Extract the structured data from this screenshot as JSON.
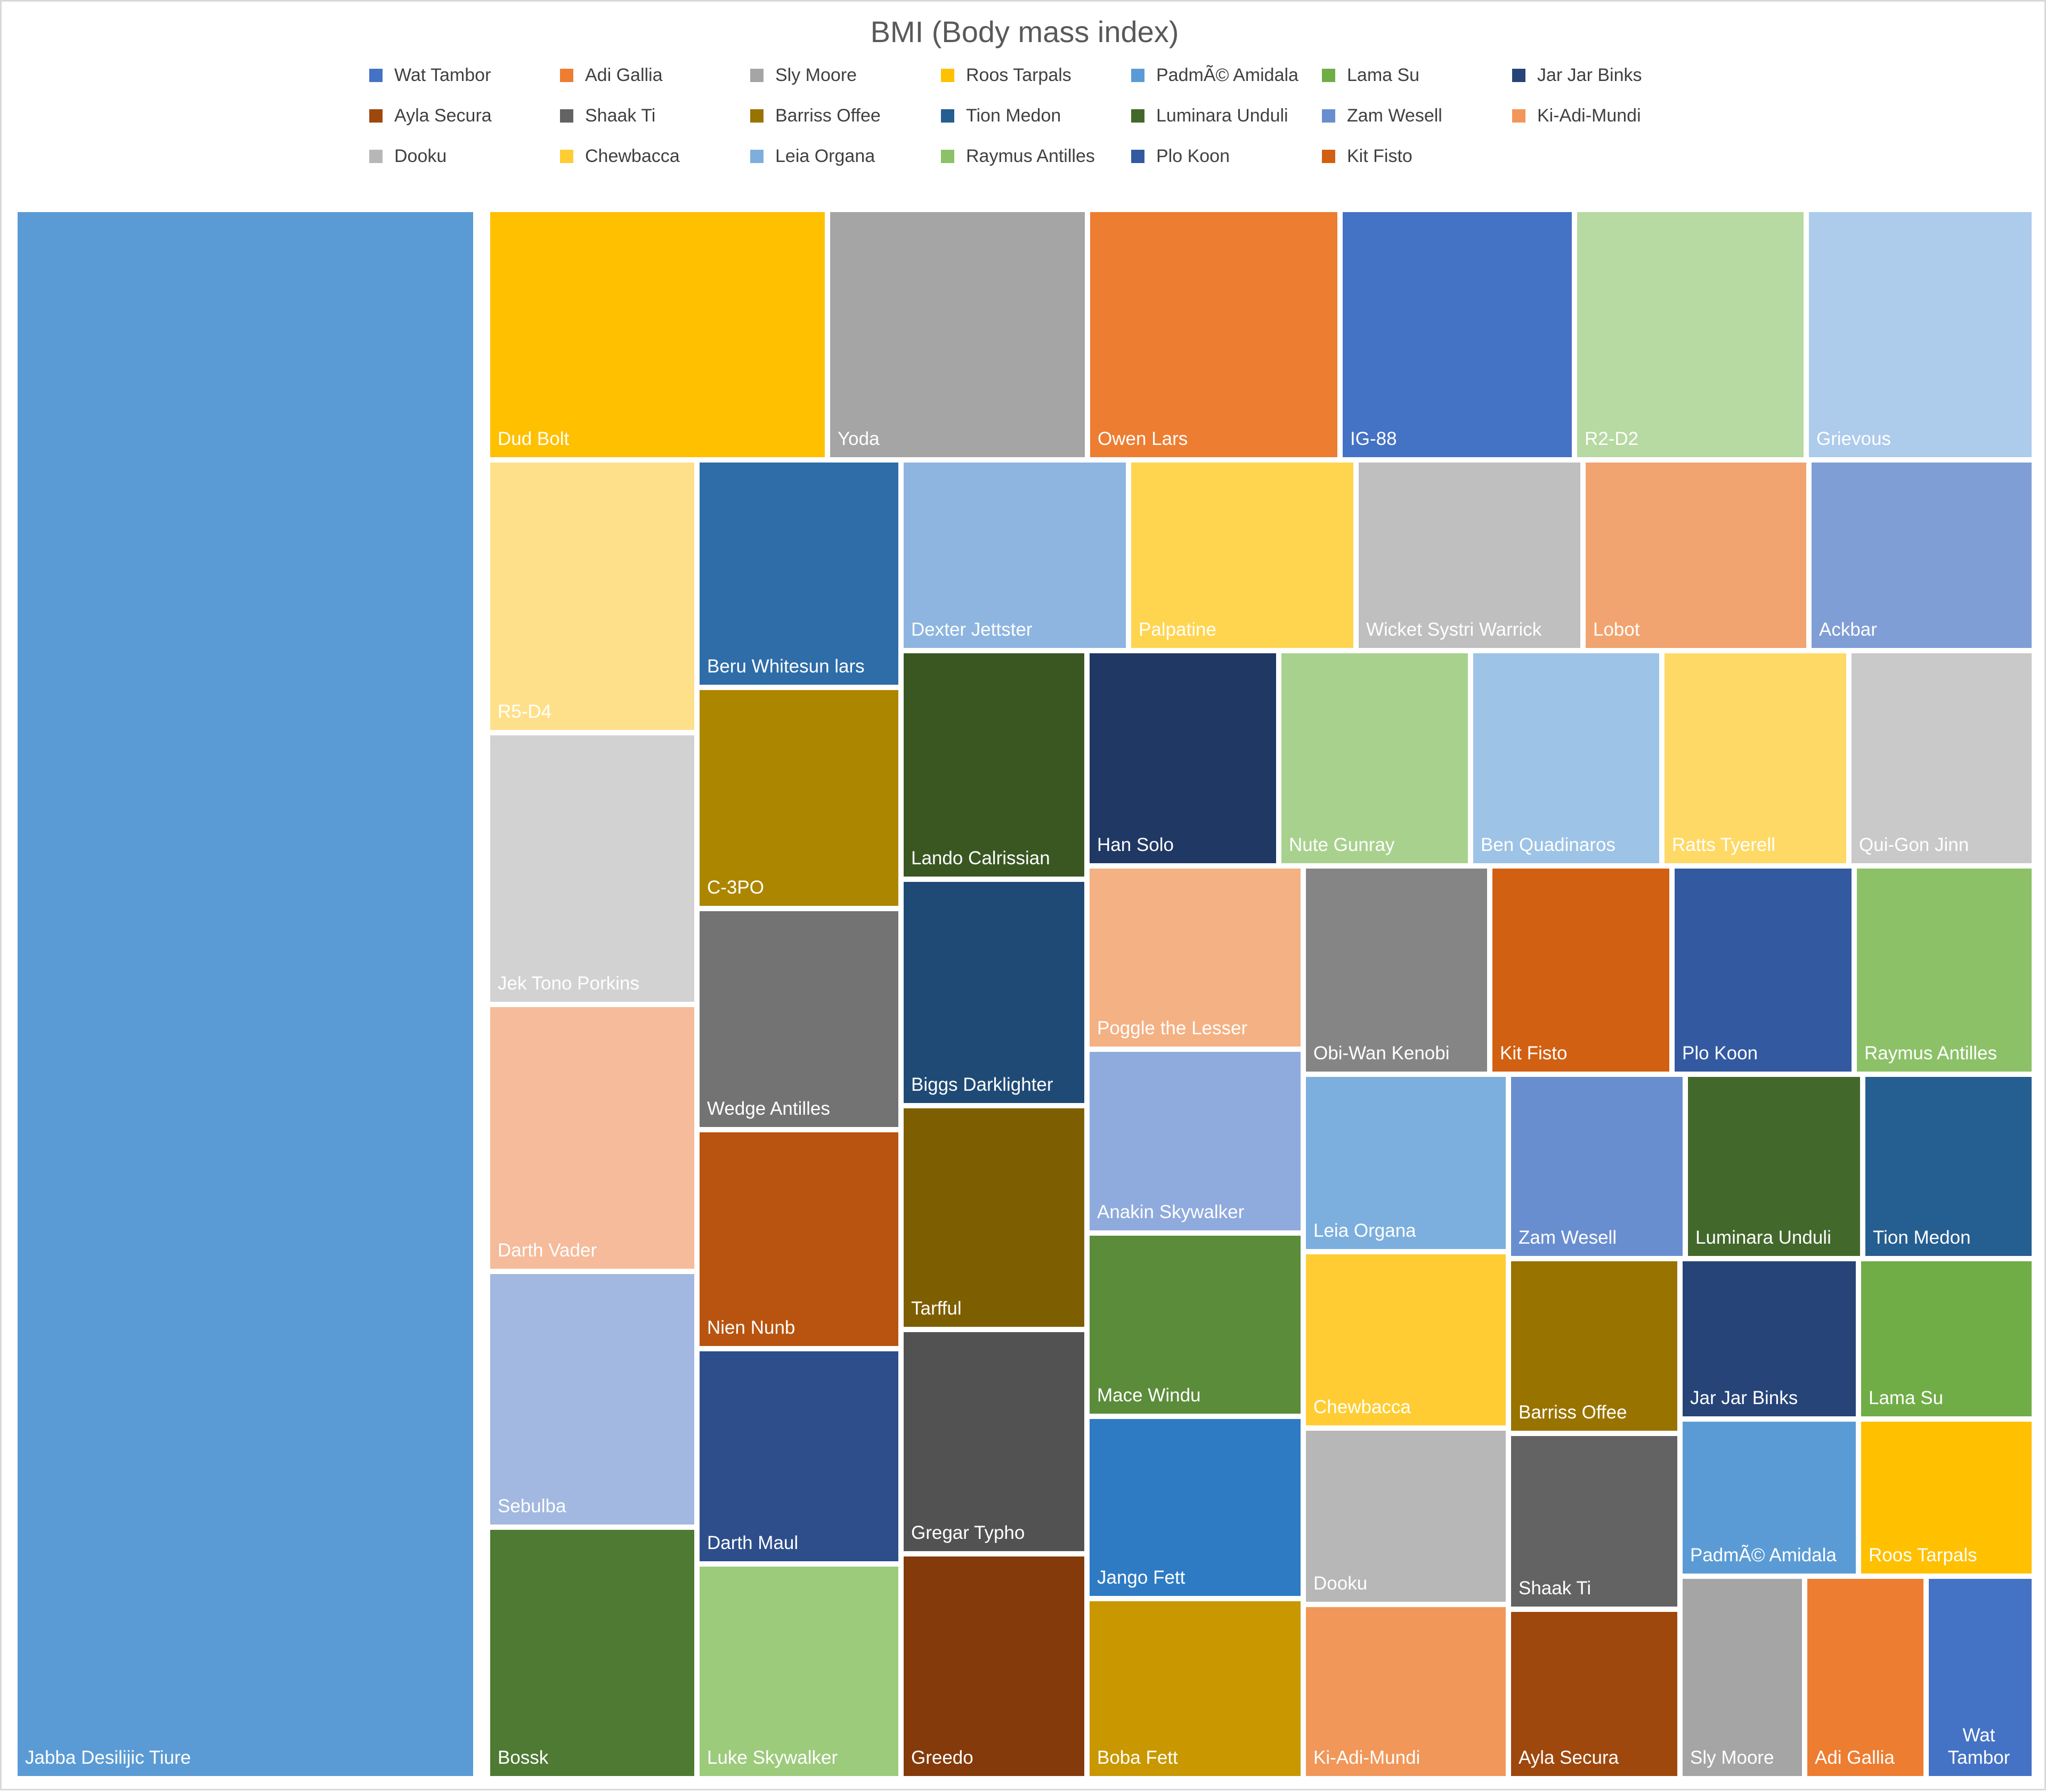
{
  "chart_data": {
    "type": "treemap",
    "title": "BMI (Body mass index)",
    "legend_position": "top",
    "legend": [
      {
        "name": "Wat Tambor",
        "color": "#4472C4"
      },
      {
        "name": "Adi Gallia",
        "color": "#ED7D31"
      },
      {
        "name": "Sly Moore",
        "color": "#A5A5A5"
      },
      {
        "name": "Roos Tarpals",
        "color": "#FFC000"
      },
      {
        "name": "PadmÃ© Amidala",
        "color": "#5B9BD5"
      },
      {
        "name": "Lama Su",
        "color": "#70AD47"
      },
      {
        "name": "Jar Jar Binks",
        "color": "#264478"
      },
      {
        "name": "Ayla Secura",
        "color": "#9E480E"
      },
      {
        "name": "Shaak Ti",
        "color": "#636363"
      },
      {
        "name": "Barriss Offee",
        "color": "#997300"
      },
      {
        "name": "Tion Medon",
        "color": "#255E91"
      },
      {
        "name": "Luminara Unduli",
        "color": "#43682B"
      },
      {
        "name": "Zam Wesell",
        "color": "#698ED0"
      },
      {
        "name": "Ki-Adi-Mundi",
        "color": "#F1975A"
      },
      {
        "name": "Dooku",
        "color": "#B7B7B7"
      },
      {
        "name": "Chewbacca",
        "color": "#FFCD33"
      },
      {
        "name": "Leia Organa",
        "color": "#7CAFDD"
      },
      {
        "name": "Raymus Antilles",
        "color": "#8CC168"
      },
      {
        "name": "Plo Koon",
        "color": "#335AA1"
      },
      {
        "name": "Kit Fisto",
        "color": "#D26012"
      }
    ],
    "items": [
      {
        "name": "Jabba Desilijic Tiure",
        "value": 443.4,
        "color": "#5B9BD5"
      },
      {
        "name": "Dud Bolt",
        "value": 50.9,
        "color": "#FFC000"
      },
      {
        "name": "Yoda",
        "value": 39.0,
        "color": "#A5A5A5"
      },
      {
        "name": "Owen Lars",
        "value": 37.9,
        "color": "#ED7D31"
      },
      {
        "name": "IG-88",
        "value": 35.0,
        "color": "#4472C4"
      },
      {
        "name": "R2-D2",
        "value": 34.7,
        "color": "#B7D9A2"
      },
      {
        "name": "Grievous",
        "value": 34.1,
        "color": "#ADCBEB"
      },
      {
        "name": "R5-D4",
        "value": 34.0,
        "color": "#FFE08A"
      },
      {
        "name": "Jek Tono Porkins",
        "value": 33.9,
        "color": "#D2D2D2"
      },
      {
        "name": "Darth Vader",
        "value": 33.3,
        "color": "#F5BB9A"
      },
      {
        "name": "Sebulba",
        "value": 31.9,
        "color": "#A2B8E0"
      },
      {
        "name": "Bossk",
        "value": 31.3,
        "color": "#4E7A33"
      },
      {
        "name": "Beru Whitesun lars",
        "value": 27.5,
        "color": "#2E6DA8"
      },
      {
        "name": "C-3PO",
        "value": 26.9,
        "color": "#AD8600"
      },
      {
        "name": "Wedge Antilles",
        "value": 26.6,
        "color": "#737373"
      },
      {
        "name": "Nien Nunb",
        "value": 26.6,
        "color": "#B85410"
      },
      {
        "name": "Darth Maul",
        "value": 26.1,
        "color": "#2D4E8A"
      },
      {
        "name": "Luke Skywalker",
        "value": 26.0,
        "color": "#9CCB7C"
      },
      {
        "name": "Dexter Jettster",
        "value": 26.0,
        "color": "#8DB5E0"
      },
      {
        "name": "Palpatine",
        "value": 25.9,
        "color": "#FFD550"
      },
      {
        "name": "Wicket Systri Warrick",
        "value": 25.8,
        "color": "#BFBFBF"
      },
      {
        "name": "Lobot",
        "value": 25.8,
        "color": "#F1A46F"
      },
      {
        "name": "Ackbar",
        "value": 25.6,
        "color": "#7F9ED5"
      },
      {
        "name": "Lando Calrissian",
        "value": 25.2,
        "color": "#3A5722"
      },
      {
        "name": "Biggs Darklighter",
        "value": 25.1,
        "color": "#1F4A75"
      },
      {
        "name": "Tarfful",
        "value": 24.8,
        "color": "#7D5E00"
      },
      {
        "name": "Gregar Typho",
        "value": 24.8,
        "color": "#525252"
      },
      {
        "name": "Greedo",
        "value": 24.7,
        "color": "#843A0B"
      },
      {
        "name": "Han Solo",
        "value": 24.7,
        "color": "#203864"
      },
      {
        "name": "Nute Gunray",
        "value": 24.7,
        "color": "#A9D18E"
      },
      {
        "name": "Ben Quadinaros",
        "value": 24.5,
        "color": "#9DC3E6"
      },
      {
        "name": "Ratts Tyerell",
        "value": 24.3,
        "color": "#FFD966"
      },
      {
        "name": "Qui-Gon Jinn",
        "value": 23.9,
        "color": "#C9C9C9"
      },
      {
        "name": "Poggle the Lesser",
        "value": 23.8,
        "color": "#F4B183"
      },
      {
        "name": "Anakin Skywalker",
        "value": 23.8,
        "color": "#8FAADC"
      },
      {
        "name": "Mace Windu",
        "value": 23.8,
        "color": "#5B8C3A"
      },
      {
        "name": "Jango Fett",
        "value": 23.6,
        "color": "#2E7BC4"
      },
      {
        "name": "Boba Fett",
        "value": 23.4,
        "color": "#C99700"
      },
      {
        "name": "Obi-Wan Kenobi",
        "value": 23.2,
        "color": "#858585"
      },
      {
        "name": "Kit Fisto",
        "value": 22.6,
        "color": "#D26012"
      },
      {
        "name": "Plo Koon",
        "value": 22.6,
        "color": "#335AA1"
      },
      {
        "name": "Raymus Antilles",
        "value": 22.4,
        "color": "#8CC168"
      },
      {
        "name": "Leia Organa",
        "value": 21.8,
        "color": "#7CAFDD"
      },
      {
        "name": "Zam Wesell",
        "value": 21.7,
        "color": "#698ED0"
      },
      {
        "name": "Luminara Unduli",
        "value": 21.4,
        "color": "#43682B"
      },
      {
        "name": "Tion Medon",
        "value": 21.4,
        "color": "#255E91"
      },
      {
        "name": "Chewbacca",
        "value": 21.5,
        "color": "#FFCD33"
      },
      {
        "name": "Barriss Offee",
        "value": 20.9,
        "color": "#997300"
      },
      {
        "name": "Jar Jar Binks",
        "value": 17.2,
        "color": "#264478"
      },
      {
        "name": "Lama Su",
        "value": 16.8,
        "color": "#70AD47"
      },
      {
        "name": "Dooku",
        "value": 21.5,
        "color": "#B7B7B7"
      },
      {
        "name": "Shaak Ti",
        "value": 20.0,
        "color": "#636363"
      },
      {
        "name": "Ki-Adi-Mundi",
        "value": 20.9,
        "color": "#F1975A"
      },
      {
        "name": "Ayla Secura",
        "value": 17.9,
        "color": "#9E480E"
      },
      {
        "name": "PadmÃ© Amidala",
        "value": 16.6,
        "color": "#5B9BD5"
      },
      {
        "name": "Roos Tarpals",
        "value": 16.3,
        "color": "#FFC000"
      },
      {
        "name": "Sly Moore",
        "value": 15.1,
        "color": "#A5A5A5"
      },
      {
        "name": "Adi Gallia",
        "value": 14.8,
        "color": "#ED7D31"
      },
      {
        "name": "Wat Tambor",
        "value": 12.9,
        "color": "#4472C4"
      }
    ]
  }
}
